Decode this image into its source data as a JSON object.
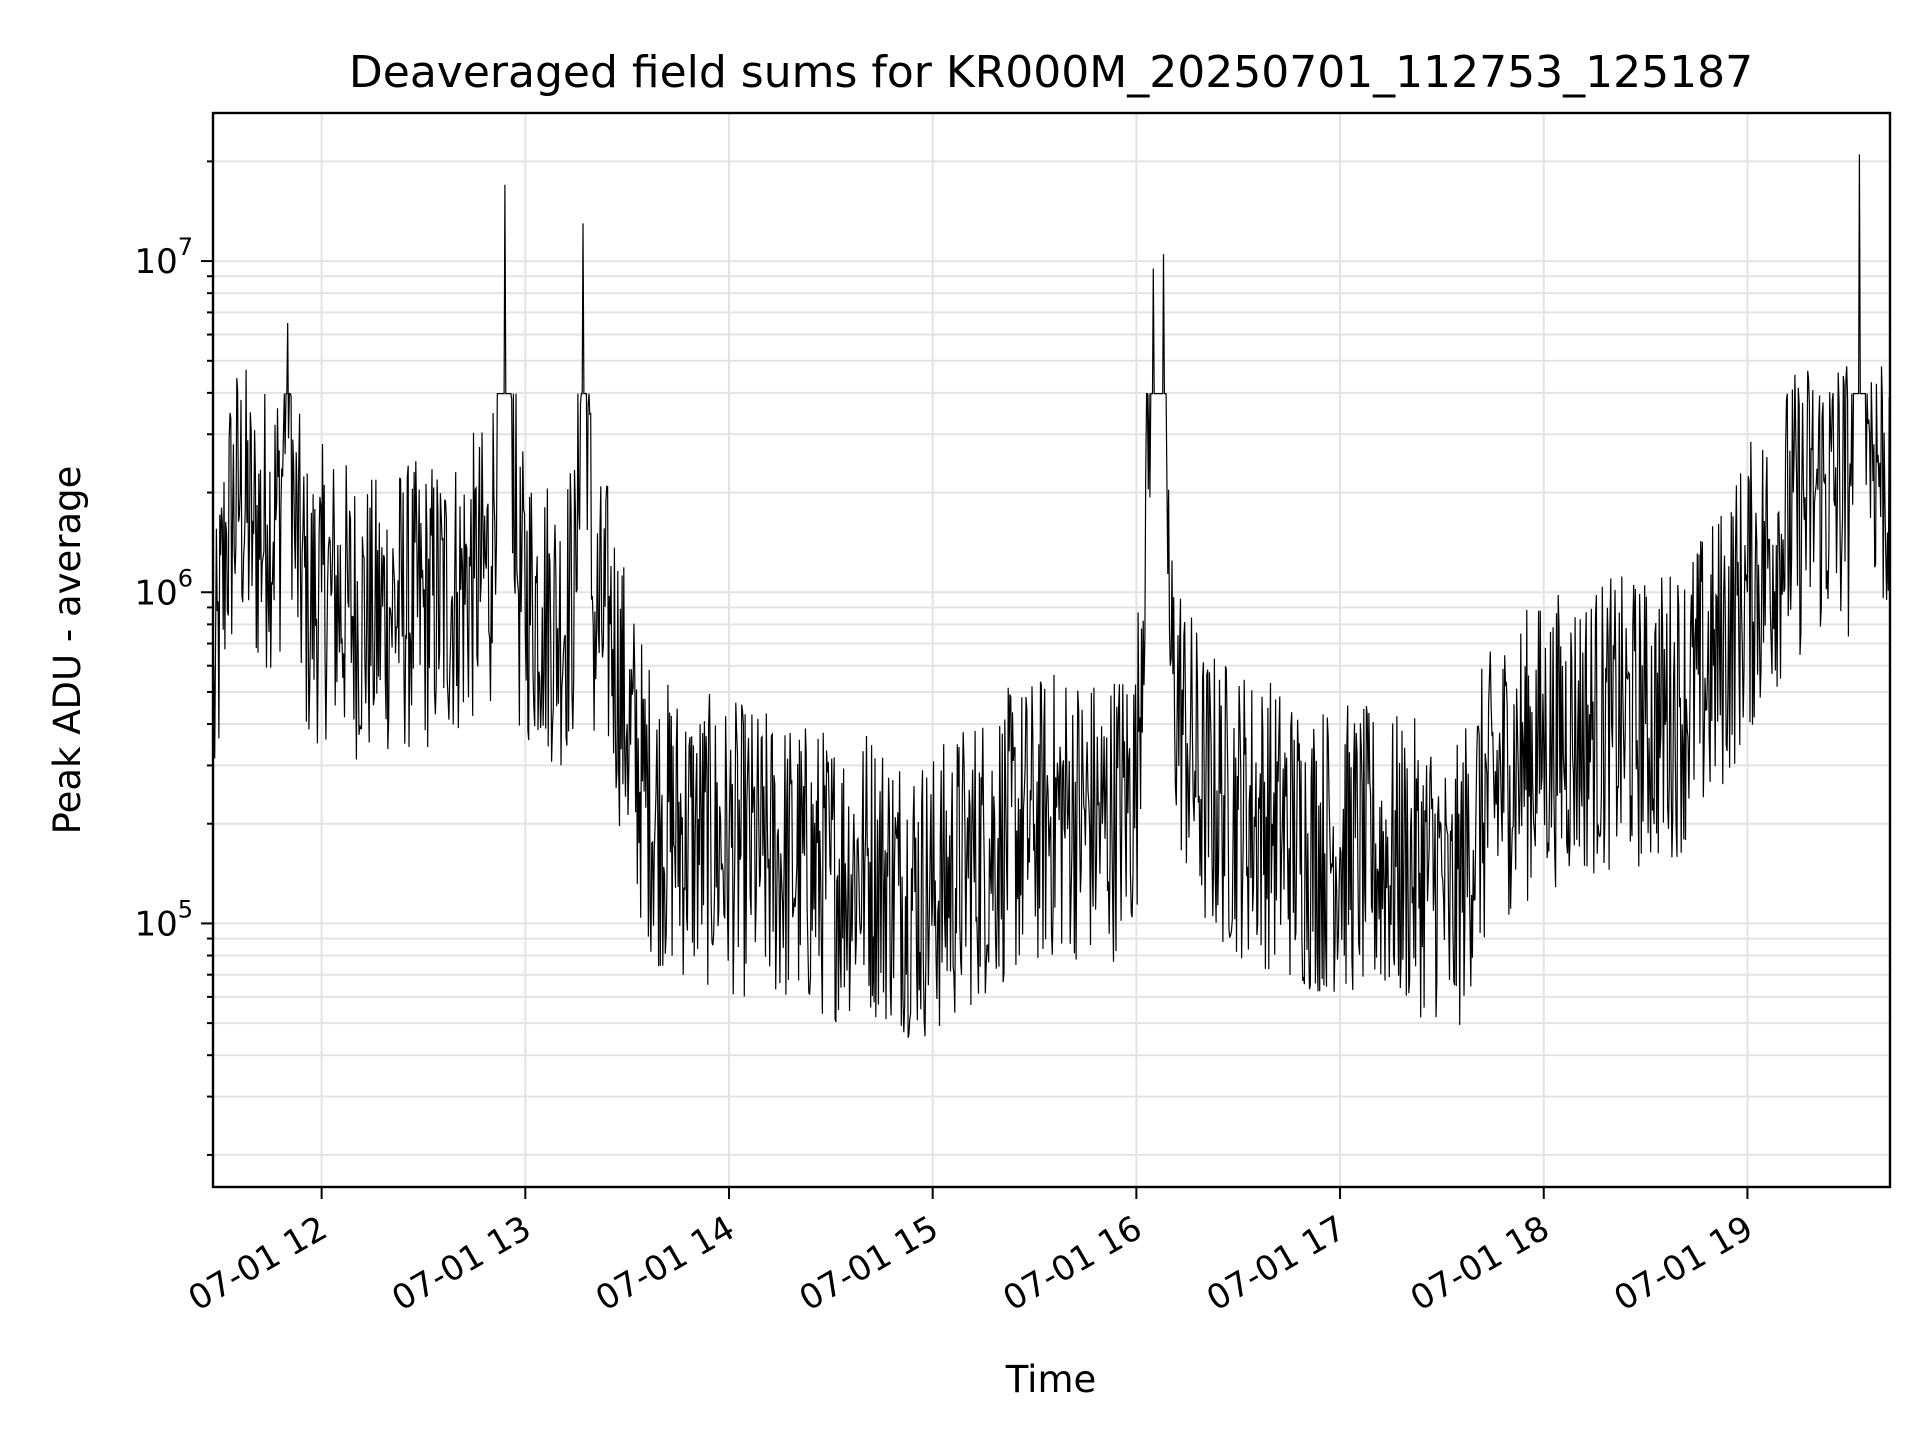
{
  "chart_data": {
    "type": "line",
    "title": "Deaveraged field sums for KR000M_20250701_112753_125187",
    "xlabel": "Time",
    "ylabel": "Peak ADU - average",
    "yscale": "log",
    "xlim": [
      "2025-07-01 11:28",
      "2025-07-01 19:42"
    ],
    "ylim": [
      16000,
      28000000
    ],
    "x_ticks": [
      "07-01 12",
      "07-01 13",
      "07-01 14",
      "07-01 15",
      "07-01 16",
      "07-01 17",
      "07-01 18",
      "07-01 19"
    ],
    "y_ticks": [
      {
        "base": "10",
        "exp": "5",
        "value": 100000
      },
      {
        "base": "10",
        "exp": "6",
        "value": 1000000
      },
      {
        "base": "10",
        "exp": "7",
        "value": 10000000
      }
    ],
    "grid": "both",
    "legend": "none",
    "line_color": "#000000",
    "series": [
      {
        "x": [
          "2025-07-01 11:28",
          "2025-07-01 11:32",
          "2025-07-01 11:36",
          "2025-07-01 11:40",
          "2025-07-01 11:44",
          "2025-07-01 11:48",
          "2025-07-01 11:50",
          "2025-07-01 11:52",
          "2025-07-01 11:56",
          "2025-07-01 12:00",
          "2025-07-01 12:03",
          "2025-07-01 12:08",
          "2025-07-01 12:15",
          "2025-07-01 12:20",
          "2025-07-01 12:30",
          "2025-07-01 12:40",
          "2025-07-01 12:45",
          "2025-07-01 12:50",
          "2025-07-01 12:54",
          "2025-07-01 12:58",
          "2025-07-01 13:05",
          "2025-07-01 13:10",
          "2025-07-01 13:15",
          "2025-07-01 13:17",
          "2025-07-01 13:20",
          "2025-07-01 13:25",
          "2025-07-01 13:30",
          "2025-07-01 13:35",
          "2025-07-01 13:40",
          "2025-07-01 13:50",
          "2025-07-01 14:00",
          "2025-07-01 14:10",
          "2025-07-01 14:20",
          "2025-07-01 14:30",
          "2025-07-01 14:40",
          "2025-07-01 14:50",
          "2025-07-01 15:00",
          "2025-07-01 15:10",
          "2025-07-01 15:20",
          "2025-07-01 15:30",
          "2025-07-01 15:40",
          "2025-07-01 15:50",
          "2025-07-01 16:00",
          "2025-07-01 16:05",
          "2025-07-01 16:08",
          "2025-07-01 16:10",
          "2025-07-01 16:15",
          "2025-07-01 16:20",
          "2025-07-01 16:30",
          "2025-07-01 16:40",
          "2025-07-01 16:50",
          "2025-07-01 17:00",
          "2025-07-01 17:10",
          "2025-07-01 17:20",
          "2025-07-01 17:30",
          "2025-07-01 17:32",
          "2025-07-01 17:40",
          "2025-07-01 17:50",
          "2025-07-01 18:00",
          "2025-07-01 18:10",
          "2025-07-01 18:20",
          "2025-07-01 18:30",
          "2025-07-01 18:40",
          "2025-07-01 18:50",
          "2025-07-01 19:00",
          "2025-07-01 19:10",
          "2025-07-01 19:20",
          "2025-07-01 19:30",
          "2025-07-01 19:33",
          "2025-07-01 19:36",
          "2025-07-01 19:42"
        ],
        "y": [
          400000,
          1500000,
          2000000,
          1500000,
          1600000,
          1800000,
          6500000,
          1500000,
          900000,
          1000000,
          1000000,
          900000,
          800000,
          900000,
          900000,
          1000000,
          1100000,
          1200000,
          17000000,
          1000000,
          900000,
          800000,
          1000000,
          13000000,
          800000,
          800000,
          400000,
          250000,
          200000,
          180000,
          170000,
          160000,
          150000,
          140000,
          150000,
          130000,
          120000,
          150000,
          180000,
          200000,
          220000,
          200000,
          250000,
          9500000,
          10500000,
          600000,
          350000,
          250000,
          220000,
          200000,
          170000,
          170000,
          160000,
          150000,
          140000,
          100000,
          200000,
          300000,
          350000,
          380000,
          400000,
          400000,
          450000,
          600000,
          1000000,
          1500000,
          2000000,
          2000000,
          21000000,
          3000000,
          2000000
        ]
      }
    ]
  }
}
